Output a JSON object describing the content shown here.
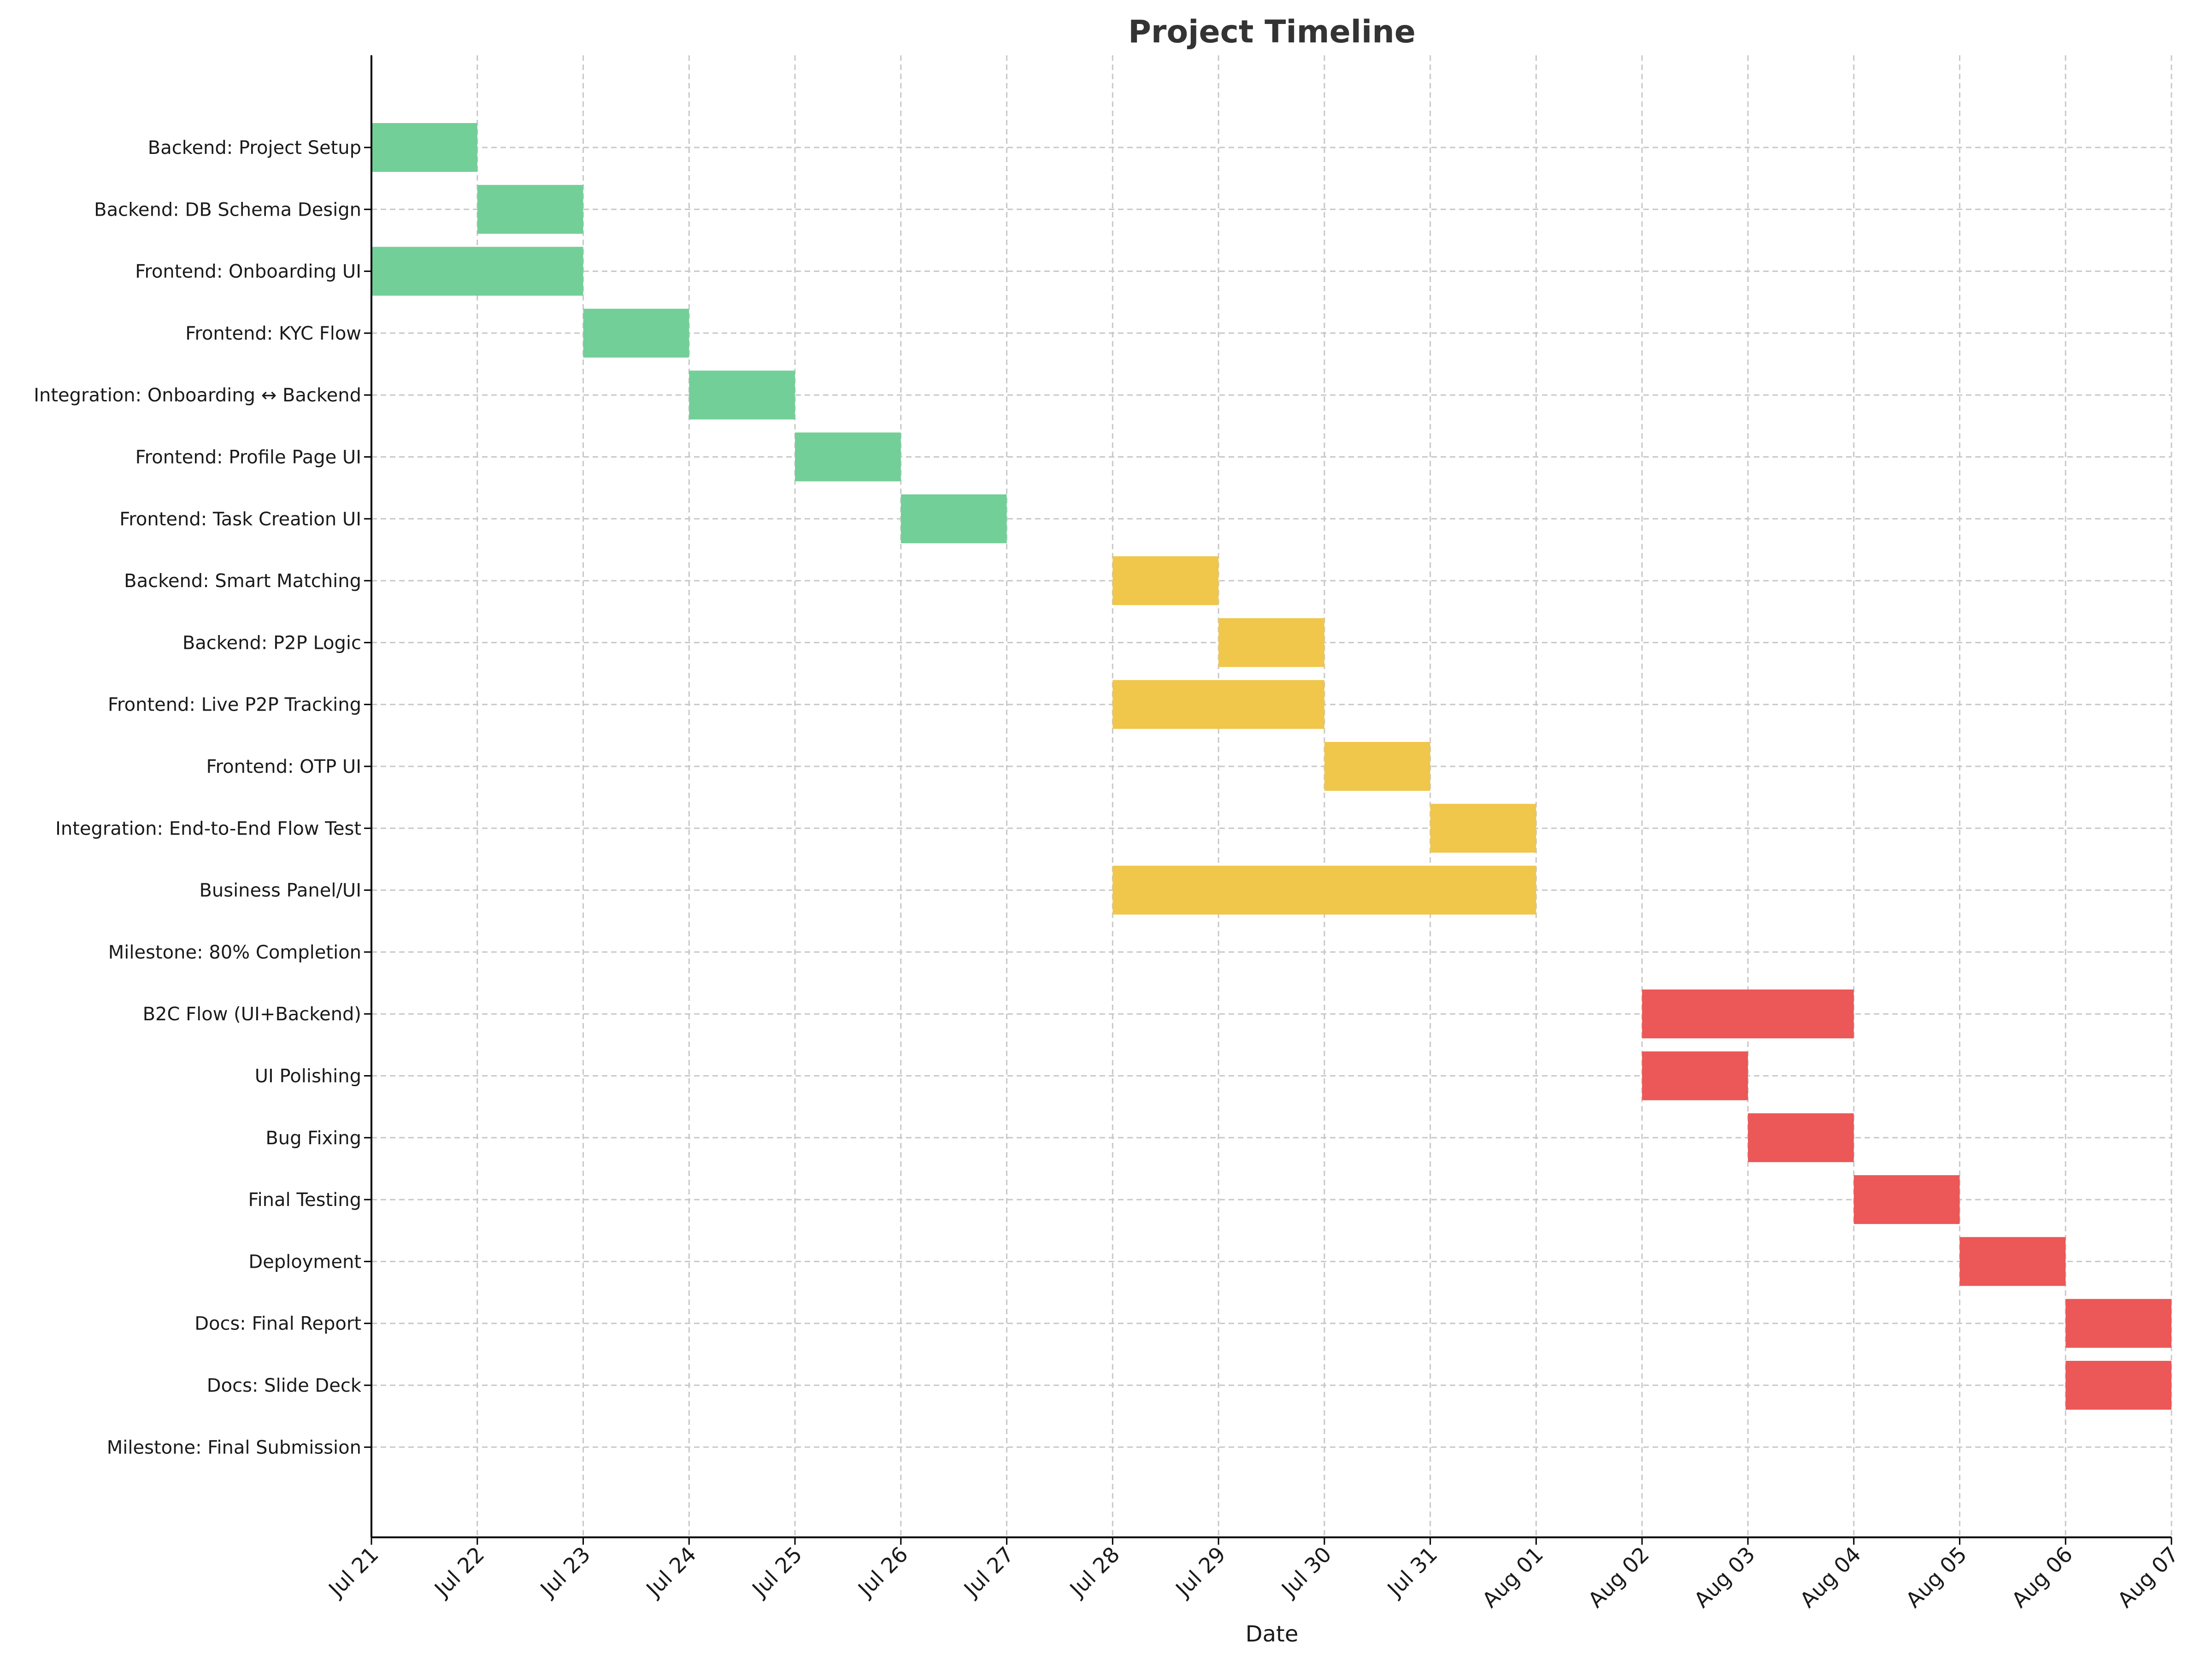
{
  "chart_data": {
    "type": "gantt",
    "title": "Project Timeline",
    "xlabel": "Date",
    "ylabel": "",
    "x_type": "date",
    "xlim": [
      "2024-07-21",
      "2024-08-07"
    ],
    "grid": true,
    "x_ticks": [
      "Jul 21",
      "Jul 22",
      "Jul 23",
      "Jul 24",
      "Jul 25",
      "Jul 26",
      "Jul 27",
      "Jul 28",
      "Jul 29",
      "Jul 30",
      "Jul 31",
      "Aug 01",
      "Aug 02",
      "Aug 03",
      "Aug 04",
      "Aug 05",
      "Aug 06",
      "Aug 07"
    ],
    "colors": {
      "phase1": "#72cf97",
      "phase2": "#f0c64b",
      "phase3": "#ec5757"
    },
    "tasks": [
      {
        "name": "Backend: Project Setup",
        "start": "2024-07-21",
        "end": "2024-07-22",
        "color": "#72cf97"
      },
      {
        "name": "Backend: DB Schema Design",
        "start": "2024-07-22",
        "end": "2024-07-23",
        "color": "#72cf97"
      },
      {
        "name": "Frontend: Onboarding UI",
        "start": "2024-07-21",
        "end": "2024-07-23",
        "color": "#72cf97"
      },
      {
        "name": "Frontend: KYC Flow",
        "start": "2024-07-23",
        "end": "2024-07-24",
        "color": "#72cf97"
      },
      {
        "name": "Integration: Onboarding ↔ Backend",
        "start": "2024-07-24",
        "end": "2024-07-25",
        "color": "#72cf97"
      },
      {
        "name": "Frontend: Profile Page UI",
        "start": "2024-07-25",
        "end": "2024-07-26",
        "color": "#72cf97"
      },
      {
        "name": "Frontend: Task Creation UI",
        "start": "2024-07-26",
        "end": "2024-07-27",
        "color": "#72cf97"
      },
      {
        "name": "Backend: Smart Matching",
        "start": "2024-07-28",
        "end": "2024-07-29",
        "color": "#f0c64b"
      },
      {
        "name": "Backend: P2P Logic",
        "start": "2024-07-29",
        "end": "2024-07-30",
        "color": "#f0c64b"
      },
      {
        "name": "Frontend: Live P2P Tracking",
        "start": "2024-07-28",
        "end": "2024-07-30",
        "color": "#f0c64b"
      },
      {
        "name": "Frontend: OTP UI",
        "start": "2024-07-30",
        "end": "2024-07-31",
        "color": "#f0c64b"
      },
      {
        "name": "Integration: End-to-End Flow Test",
        "start": "2024-07-31",
        "end": "2024-08-01",
        "color": "#f0c64b"
      },
      {
        "name": "Business Panel/UI",
        "start": "2024-07-28",
        "end": "2024-08-01",
        "color": "#f0c64b"
      },
      {
        "name": "Milestone: 80% Completion",
        "start": null,
        "end": null,
        "color": null
      },
      {
        "name": "B2C Flow (UI+Backend)",
        "start": "2024-08-02",
        "end": "2024-08-04",
        "color": "#ec5757"
      },
      {
        "name": "UI Polishing",
        "start": "2024-08-02",
        "end": "2024-08-03",
        "color": "#ec5757"
      },
      {
        "name": "Bug Fixing",
        "start": "2024-08-03",
        "end": "2024-08-04",
        "color": "#ec5757"
      },
      {
        "name": "Final Testing",
        "start": "2024-08-04",
        "end": "2024-08-05",
        "color": "#ec5757"
      },
      {
        "name": "Deployment",
        "start": "2024-08-05",
        "end": "2024-08-06",
        "color": "#ec5757"
      },
      {
        "name": "Docs: Final Report",
        "start": "2024-08-06",
        "end": "2024-08-07",
        "color": "#ec5757"
      },
      {
        "name": "Docs: Slide Deck",
        "start": "2024-08-06",
        "end": "2024-08-07",
        "color": "#ec5757"
      },
      {
        "name": "Milestone: Final Submission",
        "start": null,
        "end": null,
        "color": null
      }
    ]
  }
}
